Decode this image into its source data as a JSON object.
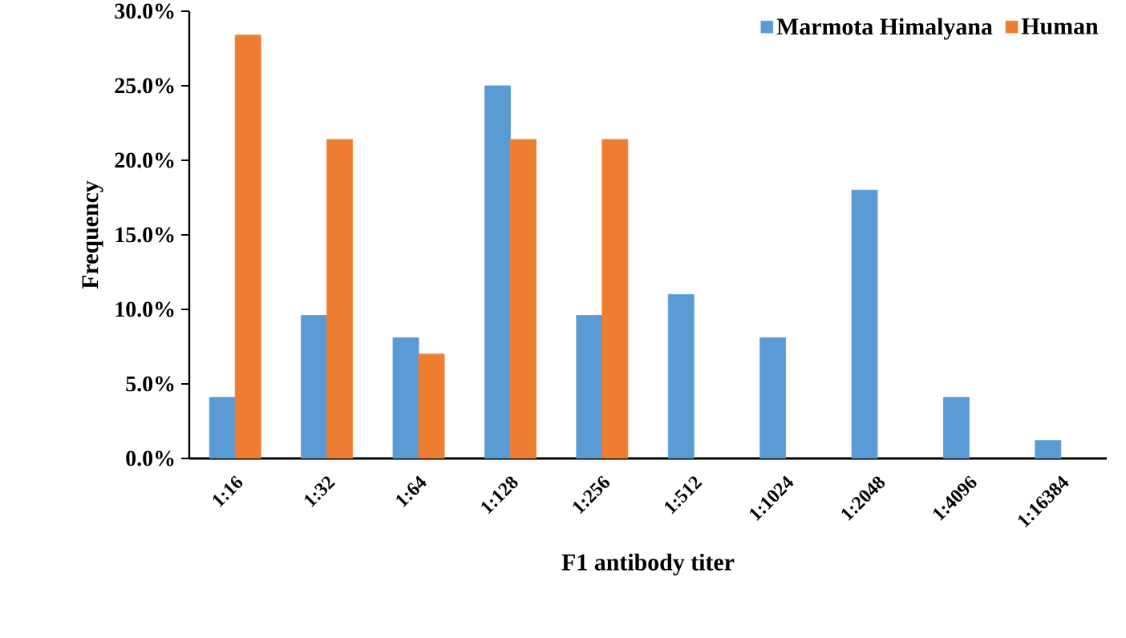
{
  "chart_data": {
    "type": "bar",
    "xlabel": "F1 antibody titer",
    "ylabel": "Frequency",
    "categories": [
      "1:16",
      "1:32",
      "1:64",
      "1:128",
      "1:256",
      "1:512",
      "1:1024",
      "1:2048",
      "1:4096",
      "1:16384"
    ],
    "series": [
      {
        "name": "Marmota Himalyana",
        "color": "#5b9bd5",
        "values": [
          4.1,
          9.6,
          8.1,
          25.0,
          9.6,
          11.0,
          8.1,
          18.0,
          4.1,
          1.2
        ]
      },
      {
        "name": "Human",
        "color": "#ed7d31",
        "values": [
          28.4,
          21.4,
          7.0,
          21.4,
          21.4,
          null,
          null,
          null,
          null,
          null
        ]
      }
    ],
    "ylim": [
      0,
      30
    ],
    "yticks": [
      {
        "value": 0,
        "label": "0.0%"
      },
      {
        "value": 5,
        "label": "5.0%"
      },
      {
        "value": 10,
        "label": "10.0%"
      },
      {
        "value": 15,
        "label": "15.0%"
      },
      {
        "value": 20,
        "label": "20.0%"
      },
      {
        "value": 25,
        "label": "25.0%"
      },
      {
        "value": 30,
        "label": "30.0%"
      }
    ],
    "grid": false,
    "legend": "top right"
  }
}
